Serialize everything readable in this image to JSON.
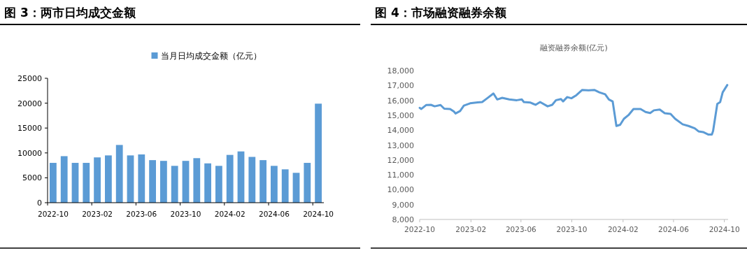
{
  "chart_data": [
    {
      "type": "bar",
      "title": "图 3：两市日均成交金额",
      "categories": [
        "2022-10",
        null,
        null,
        null,
        "2023-02",
        null,
        null,
        null,
        "2023-06",
        null,
        null,
        null,
        "2023-10",
        null,
        null,
        null,
        "2024-02",
        null,
        null,
        null,
        "2024-06",
        null,
        null,
        null,
        "2024-10"
      ],
      "series": [
        {
          "name": "当月日均成交金额（亿元）",
          "color": "#5b9bd5",
          "values": [
            8000,
            9350,
            8000,
            8000,
            9100,
            9500,
            11600,
            9500,
            9700,
            8550,
            8400,
            7400,
            8400,
            8950,
            7900,
            7400,
            9600,
            10300,
            9200,
            8550,
            7400,
            6700,
            6000,
            8000,
            19900
          ]
        }
      ],
      "ylim": [
        0,
        25000
      ],
      "yticks": [
        0,
        5000,
        10000,
        15000,
        20000,
        25000
      ],
      "legend": "top"
    },
    {
      "type": "line",
      "title": "图 4：市场融资融券余额",
      "subtitle": "融资融券余额(亿元)",
      "x": [
        "2022-10-01",
        "2022-10-05",
        "2022-10-17",
        "2022-10-28",
        "2022-11-06",
        "2022-11-20",
        "2022-11-29",
        "2022-12-13",
        "2022-12-22",
        "2022-12-26",
        "2023-01-06",
        "2023-01-15",
        "2023-01-30",
        "2023-02-17",
        "2023-02-28",
        "2023-03-12",
        "2023-03-27",
        "2023-04-05",
        "2023-04-17",
        "2023-05-04",
        "2023-05-22",
        "2023-06-03",
        "2023-06-08",
        "2023-06-24",
        "2023-07-06",
        "2023-07-17",
        "2023-08-04",
        "2023-08-15",
        "2023-08-24",
        "2023-09-05",
        "2023-09-10",
        "2023-09-20",
        "2023-09-30",
        "2023-10-12",
        "2023-10-26",
        "2023-11-10",
        "2023-11-24",
        "2023-12-06",
        "2023-12-20",
        "2023-12-29",
        "2024-01-07",
        "2024-01-16",
        "2024-01-25",
        "2024-02-03",
        "2024-02-14",
        "2024-02-26",
        "2024-03-14",
        "2024-03-26",
        "2024-04-06",
        "2024-04-15",
        "2024-04-29",
        "2024-05-11",
        "2024-05-25",
        "2024-06-05",
        "2024-06-23",
        "2024-07-07",
        "2024-07-22",
        "2024-07-31",
        "2024-08-11",
        "2024-08-23",
        "2024-09-01",
        "2024-09-04",
        "2024-09-14",
        "2024-09-21",
        "2024-09-27",
        "2024-10-08"
      ],
      "series": [
        {
          "color": "#5b9bd5",
          "values": [
            15500,
            15420,
            15690,
            15700,
            15600,
            15690,
            15440,
            15420,
            15250,
            15120,
            15280,
            15650,
            15800,
            15860,
            15890,
            16140,
            16460,
            16060,
            16170,
            16060,
            16010,
            16060,
            15890,
            15850,
            15700,
            15890,
            15600,
            15700,
            16010,
            16090,
            15930,
            16220,
            16140,
            16350,
            16700,
            16670,
            16700,
            16540,
            16410,
            16060,
            15930,
            14280,
            14360,
            14760,
            15010,
            15420,
            15420,
            15220,
            15150,
            15330,
            15380,
            15140,
            15090,
            14760,
            14390,
            14280,
            14120,
            13920,
            13870,
            13710,
            13710,
            13950,
            15760,
            15890,
            16540,
            17030
          ]
        }
      ],
      "xlim": [
        "2022-10-01",
        "2024-10-10"
      ],
      "xticks": [
        {
          "value": "2022-10-01",
          "label": "2022-10"
        },
        {
          "value": "2023-02-01",
          "label": "2023-02"
        },
        {
          "value": "2023-06-01",
          "label": "2023-06"
        },
        {
          "value": "2023-10-01",
          "label": "2023-10"
        },
        {
          "value": "2024-02-01",
          "label": "2024-02"
        },
        {
          "value": "2024-06-01",
          "label": "2024-06"
        },
        {
          "value": "2024-10-01",
          "label": "2024-10"
        }
      ],
      "ylim": [
        8000,
        18000
      ],
      "yticks": [
        {
          "value": 8000,
          "label": "8,000"
        },
        {
          "value": 9000,
          "label": "9,000"
        },
        {
          "value": 10000,
          "label": "10,000"
        },
        {
          "value": 11000,
          "label": "11,000"
        },
        {
          "value": 12000,
          "label": "12,000"
        },
        {
          "value": 13000,
          "label": "13,000"
        },
        {
          "value": 14000,
          "label": "14,000"
        },
        {
          "value": 15000,
          "label": "15,000"
        },
        {
          "value": 16000,
          "label": "16,000"
        },
        {
          "value": 17000,
          "label": "17,000"
        },
        {
          "value": 18000,
          "label": "18,000"
        }
      ]
    }
  ]
}
